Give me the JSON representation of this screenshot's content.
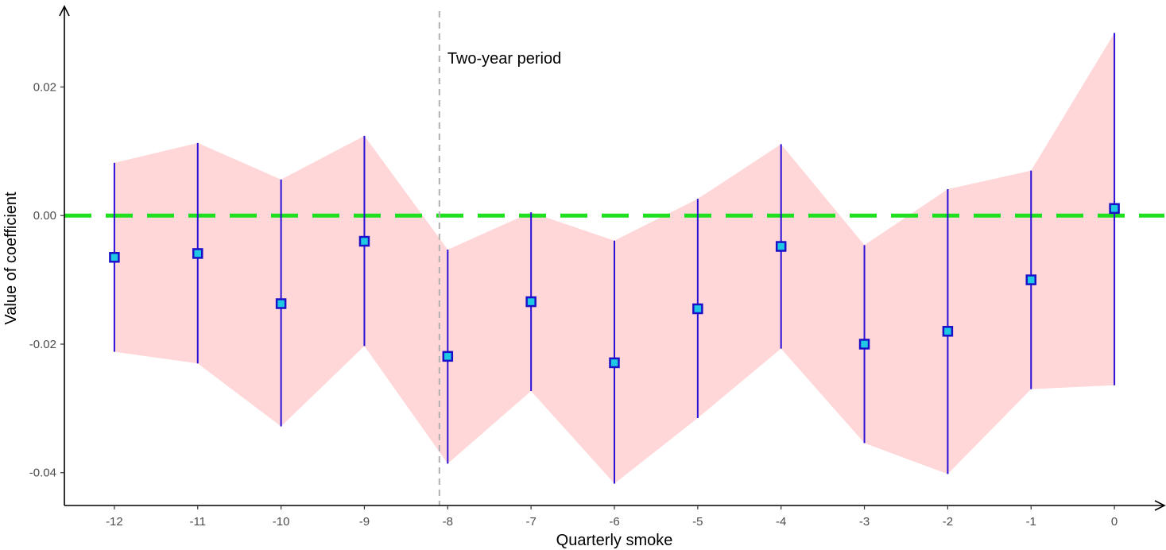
{
  "chart_data": {
    "type": "scatter",
    "title": "",
    "xlabel": "Quarterly smoke",
    "ylabel": "Value of coefficient",
    "x": [
      -12,
      -11,
      -10,
      -9,
      -8,
      -7,
      -6,
      -5,
      -4,
      -3,
      -2,
      -1,
      0
    ],
    "x_tick_labels": [
      "-12",
      "-11",
      "-10",
      "-9",
      "-8",
      "-7",
      "-6",
      "-5",
      "-4",
      "-3",
      "-2",
      "-1",
      "0"
    ],
    "y_tick_values": [
      0.02,
      0.0,
      -0.02,
      -0.04
    ],
    "y_tick_labels": [
      "0.02",
      "0.00",
      "-0.02",
      "-0.04"
    ],
    "xlim": [
      -12.6,
      0.6
    ],
    "ylim": [
      -0.0451,
      0.0318
    ],
    "grid": false,
    "series": [
      {
        "estimate": [
          -0.0065,
          -0.0059,
          -0.0137,
          -0.004,
          -0.0219,
          -0.0134,
          -0.0229,
          -0.0145,
          -0.0048,
          -0.02,
          -0.018,
          -0.01,
          0.0011
        ],
        "ci_lower": [
          -0.0212,
          -0.023,
          -0.0328,
          -0.0203,
          -0.0386,
          -0.0273,
          -0.0417,
          -0.0315,
          -0.0207,
          -0.0354,
          -0.0402,
          -0.027,
          -0.0264
        ],
        "ci_upper": [
          0.0082,
          0.0113,
          0.0056,
          0.0124,
          -0.0053,
          0.0005,
          -0.0039,
          0.0026,
          0.0111,
          -0.0046,
          0.0041,
          0.007,
          0.0284
        ],
        "point_fill_color": "#1fc8e3",
        "point_border_color": "#1b10c8",
        "errorbar_color": "#2a10d8",
        "ribbon_color": "#ffb6b9"
      }
    ],
    "reference_lines": [
      {
        "axis": "y",
        "value": 0.0,
        "style": "dashed",
        "color": "#1fe01f"
      },
      {
        "axis": "x",
        "value": -8.1,
        "style": "dashed",
        "color": "#b0b0b0"
      }
    ],
    "annotations": [
      {
        "text": "Two-year period",
        "x": -8.1,
        "y": 0.0245
      }
    ]
  }
}
